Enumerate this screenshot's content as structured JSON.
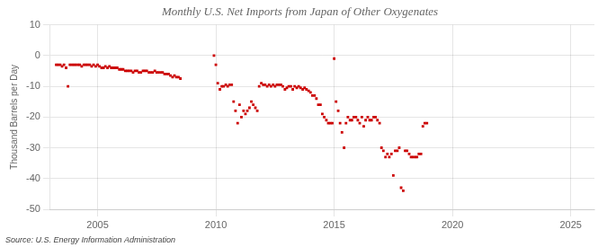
{
  "chart_data": {
    "type": "scatter",
    "title": "Monthly U.S. Net Imports from Japan of Other Oxygenates",
    "ylabel": "Thousand Barrels per Day",
    "annotations": [
      "Source: U.S. Energy Information Administration"
    ],
    "color": "#cc0000",
    "marker": "square",
    "grid": true,
    "xlim": [
      2003.0,
      2026.0
    ],
    "ylim": [
      -50,
      10
    ],
    "xticks": [
      2005,
      2010,
      2015,
      2020,
      2025
    ],
    "yticks": [
      -50,
      -40,
      -30,
      -20,
      -10,
      0,
      10
    ],
    "x": [
      2003.25,
      2003.33,
      2003.42,
      2003.5,
      2003.58,
      2003.67,
      2003.75,
      2003.83,
      2003.92,
      2004.0,
      2004.08,
      2004.17,
      2004.25,
      2004.33,
      2004.42,
      2004.5,
      2004.58,
      2004.67,
      2004.75,
      2004.83,
      2004.92,
      2005.0,
      2005.08,
      2005.17,
      2005.25,
      2005.33,
      2005.42,
      2005.5,
      2005.58,
      2005.67,
      2005.75,
      2005.83,
      2005.92,
      2006.0,
      2006.08,
      2006.17,
      2006.25,
      2006.33,
      2006.42,
      2006.5,
      2006.58,
      2006.67,
      2006.75,
      2006.83,
      2006.92,
      2007.0,
      2007.08,
      2007.17,
      2007.25,
      2007.33,
      2007.42,
      2007.5,
      2007.58,
      2007.67,
      2007.75,
      2007.83,
      2007.92,
      2008.0,
      2008.08,
      2008.17,
      2008.25,
      2008.33,
      2008.42,
      2008.5,
      2009.92,
      2010.0,
      2010.08,
      2010.17,
      2010.25,
      2010.33,
      2010.42,
      2010.5,
      2010.58,
      2010.67,
      2010.75,
      2010.83,
      2010.92,
      2011.0,
      2011.08,
      2011.17,
      2011.25,
      2011.33,
      2011.42,
      2011.5,
      2011.58,
      2011.67,
      2011.75,
      2011.83,
      2011.92,
      2012.0,
      2012.08,
      2012.17,
      2012.25,
      2012.33,
      2012.42,
      2012.5,
      2012.58,
      2012.67,
      2012.75,
      2012.83,
      2012.92,
      2013.0,
      2013.08,
      2013.17,
      2013.25,
      2013.33,
      2013.42,
      2013.5,
      2013.58,
      2013.67,
      2013.75,
      2013.83,
      2013.92,
      2014.0,
      2014.08,
      2014.17,
      2014.25,
      2014.33,
      2014.42,
      2014.5,
      2014.58,
      2014.67,
      2014.75,
      2014.83,
      2014.92,
      2015.0,
      2015.08,
      2015.17,
      2015.25,
      2015.33,
      2015.42,
      2015.5,
      2015.58,
      2015.67,
      2015.75,
      2015.83,
      2015.92,
      2016.0,
      2016.08,
      2016.17,
      2016.25,
      2016.33,
      2016.42,
      2016.5,
      2016.58,
      2016.67,
      2016.75,
      2016.83,
      2016.92,
      2017.0,
      2017.08,
      2017.17,
      2017.25,
      2017.33,
      2017.42,
      2017.5,
      2017.58,
      2017.67,
      2017.75,
      2017.83,
      2017.92,
      2018.0,
      2018.08,
      2018.17,
      2018.25,
      2018.33,
      2018.42,
      2018.5,
      2018.58,
      2018.67,
      2018.75,
      2018.83,
      2018.92
    ],
    "values": [
      -3,
      -3,
      -3,
      -3.5,
      -3,
      -4,
      -10,
      -3,
      -3,
      -3,
      -3,
      -3,
      -3,
      -3.5,
      -3,
      -3,
      -3,
      -3,
      -3.5,
      -3,
      -3.5,
      -3,
      -3.5,
      -4,
      -4,
      -3.5,
      -4,
      -3.5,
      -4,
      -4,
      -4,
      -4,
      -4.5,
      -4.5,
      -4.5,
      -5,
      -5,
      -5,
      -5,
      -5.5,
      -5,
      -5,
      -5.5,
      -5.5,
      -5,
      -5,
      -5,
      -5.5,
      -5.5,
      -5.5,
      -5,
      -5.5,
      -5.5,
      -5.5,
      -5.5,
      -6,
      -6,
      -6,
      -6.5,
      -7,
      -6.5,
      -7,
      -7,
      -7.5,
      0,
      -3,
      -9,
      -11,
      -10,
      -10,
      -9.5,
      -10,
      -9.5,
      -9.5,
      -15,
      -18,
      -22,
      -16,
      -20,
      -18,
      -19,
      -18,
      -17,
      -15,
      -16,
      -17,
      -18,
      -10,
      -9,
      -9.5,
      -9.5,
      -10,
      -9.5,
      -10,
      -9.5,
      -10,
      -9.5,
      -9.5,
      -9.5,
      -10,
      -11,
      -10.5,
      -10,
      -10,
      -11,
      -10,
      -10.5,
      -10,
      -10.5,
      -11,
      -10.5,
      -11,
      -11.5,
      -12,
      -13,
      -13,
      -14,
      -16,
      -16,
      -19,
      -20,
      -21,
      -22,
      -22,
      -22,
      -1,
      -15,
      -18,
      -22,
      -25,
      -30,
      -22,
      -20,
      -21,
      -21,
      -20,
      -20,
      -21,
      -22,
      -20,
      -23,
      -21,
      -20,
      -21,
      -21,
      -20,
      -20,
      -21,
      -22,
      -30,
      -31,
      -33,
      -32,
      -33,
      -32,
      -39,
      -31,
      -31,
      -30,
      -43,
      -44,
      -31,
      -31,
      -32,
      -33,
      -33,
      -33,
      -33,
      -32,
      -32,
      -23,
      -22,
      -22
    ]
  }
}
